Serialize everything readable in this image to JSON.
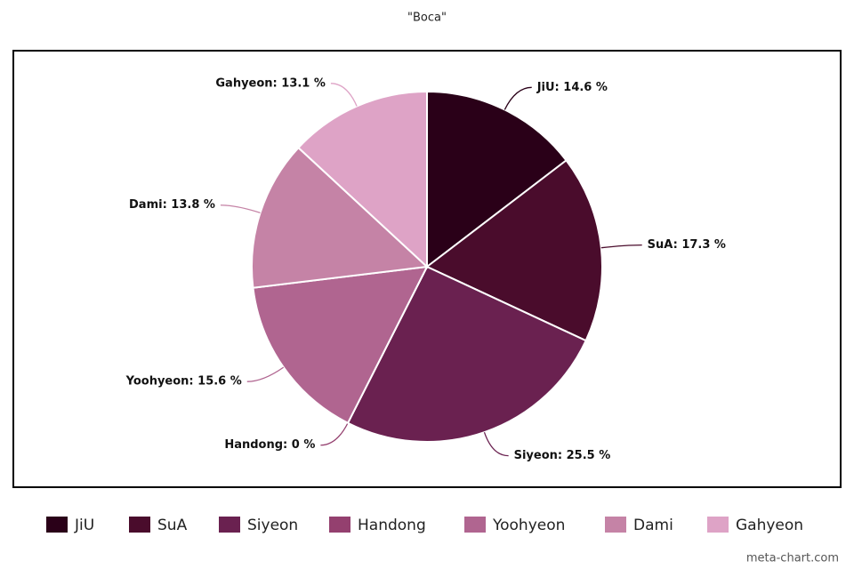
{
  "chart_data": {
    "type": "pie",
    "title": "\"Boca\"",
    "categories": [
      "JiU",
      "SuA",
      "Siyeon",
      "Handong",
      "Yoohyeon",
      "Dami",
      "Gahyeon"
    ],
    "values": [
      14.6,
      17.3,
      25.5,
      0,
      15.6,
      13.8,
      13.1
    ],
    "value_labels": [
      "JiU: 14.6 %",
      "SuA: 17.3 %",
      "Siyeon: 25.5 %",
      "Handong: 0 %",
      "Yoohyeon: 15.6 %",
      "Dami: 13.8 %",
      "Gahyeon: 13.1 %"
    ],
    "colors": [
      "#2a0018",
      "#4a0c2c",
      "#6a2150",
      "#94406f",
      "#b06590",
      "#c583a6",
      "#dea3c6"
    ],
    "legend": "bottom",
    "watermark": "meta-chart.com"
  }
}
